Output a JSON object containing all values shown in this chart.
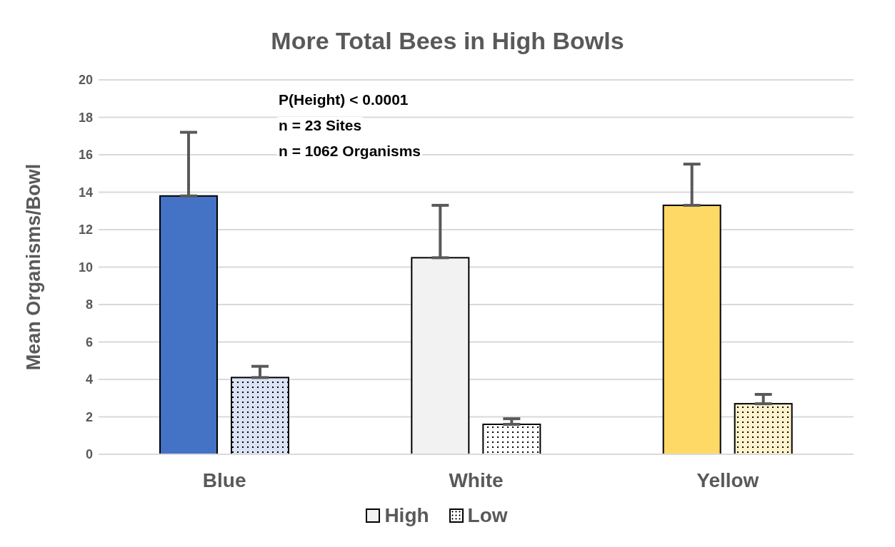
{
  "chart_data": {
    "type": "bar",
    "title": "More Total Bees in High Bowls",
    "ylabel": "Mean Organisms/Bowl",
    "categories": [
      "Blue",
      "White",
      "Yellow"
    ],
    "series": [
      {
        "name": "High",
        "color": "#f2f2f2",
        "colors": [
          "#4472c4",
          "#f2f2f2",
          "#ffd966"
        ],
        "values": [
          13.8,
          10.5,
          13.3
        ],
        "errors": [
          [
            13.8,
            17.2
          ],
          [
            10.5,
            13.3
          ],
          [
            13.3,
            15.5
          ]
        ]
      },
      {
        "name": "Low",
        "color": "#ffffff",
        "colors": [
          "#dae3f3",
          "#ffffff",
          "#fff2cc"
        ],
        "values": [
          4.1,
          1.6,
          2.7
        ],
        "errors": [
          [
            4.1,
            4.7
          ],
          [
            1.6,
            1.9
          ],
          [
            2.7,
            3.2
          ]
        ]
      }
    ],
    "ylim": [
      0,
      20
    ],
    "yticks": [
      0,
      2,
      4,
      6,
      8,
      10,
      12,
      14,
      16,
      18,
      20
    ],
    "grid": "y",
    "legend": "bottom",
    "annotations": [
      "P(Height) < 0.0001",
      "n = 23 Sites",
      "n = 1062 Organisms"
    ]
  }
}
